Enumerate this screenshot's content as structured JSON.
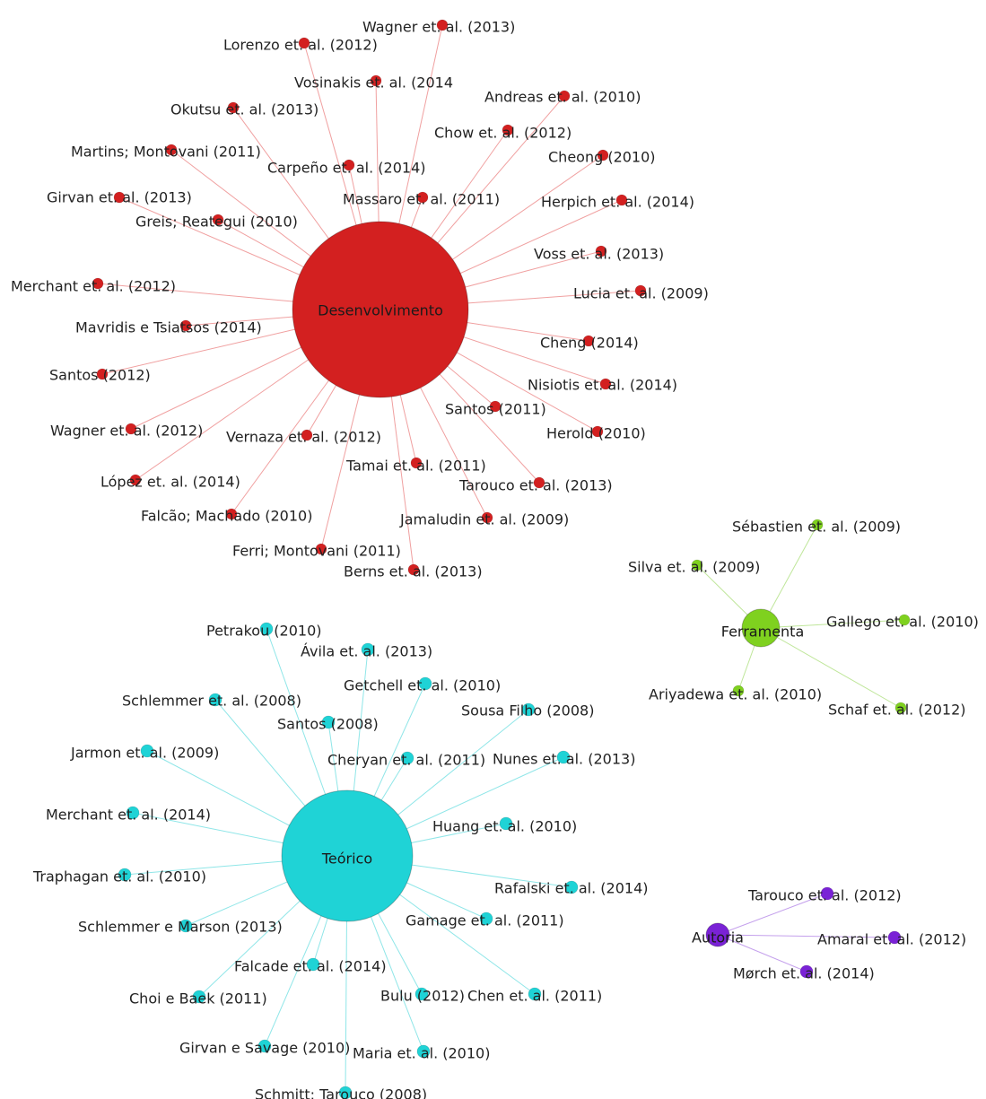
{
  "clusters": [
    {
      "id": "desenvolvimento",
      "label": "Desenvolvimento",
      "color": "#d32020",
      "edge_color": "#f0a0a0",
      "nodes": [
        "Wagner et. al. (2013)",
        "Lorenzo et. al. (2012)",
        "Vosinakis et. al. (2014",
        "Andreas et. al. (2010)",
        "Okutsu et. al. (2013)",
        "Chow et. al. (2012)",
        "Martins; Montovani (2011)",
        "Cheong (2010)",
        "Carpeño et. al. (2014)",
        "Girvan et. al. (2013)",
        "Massaro et. al. (2011)",
        "Herpich et. al. (2014)",
        "Greis; Reategui (2010)",
        "Voss et. al. (2013)",
        "Merchant et. al. (2012)",
        "Lucia et. al. (2009)",
        "Mavridis e Tsiatsos (2014)",
        "Cheng (2014)",
        "Santos (2012)",
        "Nisiotis et. al. (2014)",
        "Santos (2011)",
        "Wagner et. al. (2012)",
        "Herold (2010)",
        "Vernaza et. al. (2012)",
        "Tamai et. al. (2011)",
        "López et. al. (2014)",
        "Tarouco et. al. (2013)",
        "Falcão; Machado (2010)",
        "Jamaludin et. al. (2009)",
        "Ferri; Montovani (2011)",
        "Berns et. al. (2013)"
      ]
    },
    {
      "id": "ferramenta",
      "label": "Ferramenta",
      "color": "#7fd11f",
      "edge_color": "#bfe69a",
      "nodes": [
        "Sébastien et. al. (2009)",
        "Silva et. al. (2009)",
        "Gallego et. al. (2010)",
        "Ariyadewa et. al. (2010)",
        "Schaf et. al. (2012)"
      ]
    },
    {
      "id": "teorico",
      "label": "Teórico",
      "color": "#1fd3d6",
      "edge_color": "#8fe6e8",
      "nodes": [
        "Petrakou (2010)",
        "Ávila et. al. (2013)",
        "Getchell et. al. (2010)",
        "Schlemmer et. al. (2008)",
        "Sousa Filho (2008)",
        "Santos (2008)",
        "Jarmon et. al. (2009)",
        "Cheryan et. al. (2011)",
        "Nunes et. al. (2013)",
        "Merchant et. al. (2014)",
        "Huang et. al. (2010)",
        "Traphagan et. al. (2010)",
        "Rafalski et. al. (2014)",
        "Schlemmer e Marson (2013)",
        "Gamage et. al. (2011)",
        "Falcade et. al. (2014)",
        "Choi e Baek (2011)",
        "Bulu (2012)",
        "Chen et. al. (2011)",
        "Girvan e Savage (2010)",
        "Maria et. al. (2010)",
        "Schmitt; Tarouco (2008)"
      ]
    },
    {
      "id": "autoria",
      "label": "Autoria",
      "color": "#7a22d6",
      "edge_color": "#c4a0ec",
      "nodes": [
        "Tarouco et. al. (2012)",
        "Amaral et. al. (2012)",
        "Mørch et. al. (2014)"
      ]
    }
  ]
}
